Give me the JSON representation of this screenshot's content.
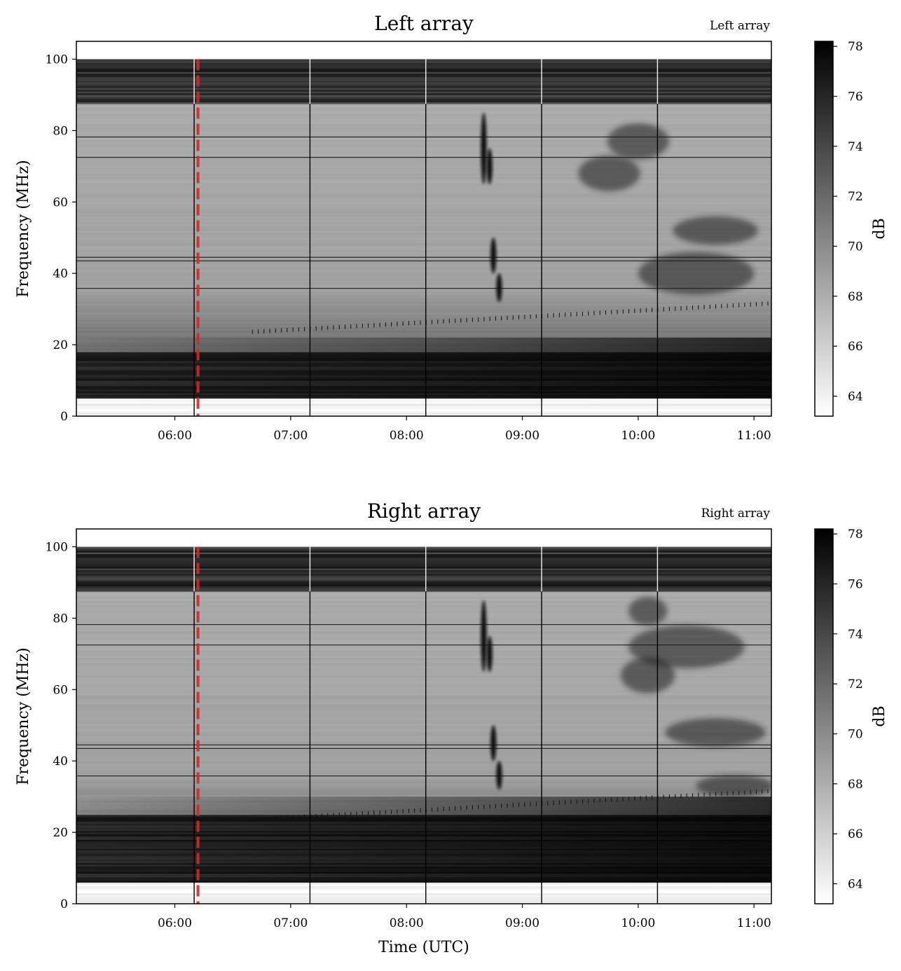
{
  "chart_data": [
    {
      "type": "heatmap",
      "title": "Left array",
      "corner_label": "Left array",
      "xlabel": "",
      "ylabel": "Frequency (MHz)",
      "x_ticks": [
        "06:00",
        "07:00",
        "08:00",
        "09:00",
        "10:00",
        "11:00"
      ],
      "xlim": [
        "05:09",
        "11:09"
      ],
      "y_ticks": [
        0,
        20,
        40,
        60,
        80,
        100
      ],
      "ylim": [
        0,
        105
      ],
      "data_ylim": [
        0,
        100
      ],
      "colorbar": {
        "label": "dB",
        "ticks": [
          64,
          66,
          68,
          70,
          72,
          74,
          76,
          78
        ],
        "range": [
          63.2,
          78.2
        ],
        "colormap": "gray_r"
      },
      "marker_line": {
        "time": "06:12",
        "color": "#d62728",
        "style": "dashed"
      },
      "features": {
        "dark_band_MHz": [
          87.5,
          100
        ],
        "dark_band_low_MHz": [
          5,
          18
        ],
        "bright_band_MHz": [
          0,
          5
        ],
        "burst_time": [
          "08:40",
          "08:55"
        ],
        "burst_freq_MHz": [
          30,
          85
        ]
      }
    },
    {
      "type": "heatmap",
      "title": "Right array",
      "corner_label": "Right array",
      "xlabel": "Time (UTC)",
      "ylabel": "Frequency (MHz)",
      "x_ticks": [
        "06:00",
        "07:00",
        "08:00",
        "09:00",
        "10:00",
        "11:00"
      ],
      "xlim": [
        "05:09",
        "11:09"
      ],
      "y_ticks": [
        0,
        20,
        40,
        60,
        80,
        100
      ],
      "ylim": [
        0,
        105
      ],
      "data_ylim": [
        0,
        100
      ],
      "colorbar": {
        "label": "dB",
        "ticks": [
          64,
          66,
          68,
          70,
          72,
          74,
          76,
          78
        ],
        "range": [
          63.2,
          78.2
        ],
        "colormap": "gray_r"
      },
      "marker_line": {
        "time": "06:12",
        "color": "#d62728",
        "style": "dashed"
      },
      "features": {
        "dark_band_MHz": [
          87.5,
          100
        ],
        "dark_band_low_MHz": [
          6,
          25
        ],
        "bright_band_MHz": [
          0,
          6
        ],
        "burst_time": [
          "08:40",
          "08:55"
        ],
        "burst_freq_MHz": [
          30,
          90
        ]
      }
    }
  ]
}
